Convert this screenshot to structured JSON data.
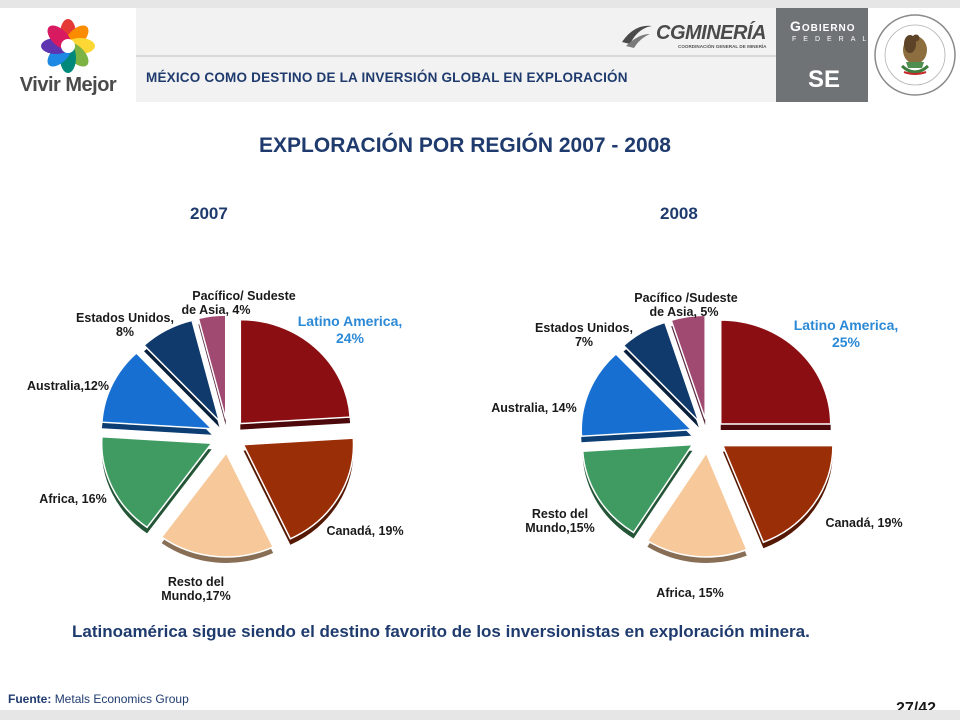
{
  "header": {
    "logo_text": "Vivir Mejor",
    "title": "MÉXICO COMO DESTINO DE LA INVERSIÓN GLOBAL EN EXPLORACIÓN",
    "cg_logo": "CGMINERÍA",
    "cg_sub": "COORDINACIÓN GENERAL DE MINERÍA",
    "gob_title": "Gobierno",
    "gob_sub": "FEDERAL",
    "se": "SE"
  },
  "main_title": "EXPLORACIÓN POR REGIÓN 2007 - 2008",
  "chart_data": [
    {
      "type": "pie",
      "title": "2007",
      "slices": [
        {
          "label": "Latino America, 24%",
          "value": 24,
          "color": "#8b0f12"
        },
        {
          "label": "Canadá, 19%",
          "value": 19,
          "color": "#9a2e06"
        },
        {
          "label": "Resto del Mundo,17%",
          "value": 17,
          "color": "#f6c89a"
        },
        {
          "label": "Africa, 16%",
          "value": 16,
          "color": "#3f9b62"
        },
        {
          "label": "Australia,12%",
          "value": 12,
          "color": "#1770d1"
        },
        {
          "label": "Estados Unidos, 8%",
          "value": 8,
          "color": "#0f3a6b"
        },
        {
          "label": "Pacífico/ Sudeste de Asia, 4%",
          "value": 4,
          "color": "#a04a72"
        }
      ]
    },
    {
      "type": "pie",
      "title": "2008",
      "slices": [
        {
          "label": "Latino America, 25%",
          "value": 25,
          "color": "#8b0f12"
        },
        {
          "label": "Canadá, 19%",
          "value": 19,
          "color": "#9a2e06"
        },
        {
          "label": "Africa, 15%",
          "value": 15,
          "color": "#f6c89a"
        },
        {
          "label": "Resto del Mundo,15%",
          "value": 15,
          "color": "#3f9b62"
        },
        {
          "label": "Australia, 14%",
          "value": 14,
          "color": "#1770d1"
        },
        {
          "label": "Estados Unidos, 7%",
          "value": 7,
          "color": "#0f3a6b"
        },
        {
          "label": "Pacífico /Sudeste de Asia, 5%",
          "value": 5,
          "color": "#a04a72"
        }
      ]
    }
  ],
  "conclusion": "Latinoamérica sigue siendo el destino favorito de los inversionistas en exploración minera.",
  "footer": {
    "source_label": "Fuente:",
    "source_value": "Metals Economics Group",
    "page": "27/42"
  }
}
